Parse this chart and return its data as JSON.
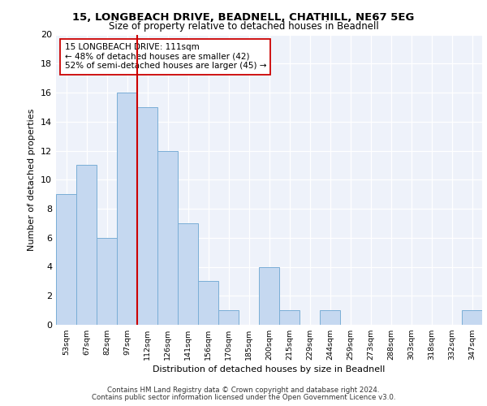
{
  "title1": "15, LONGBEACH DRIVE, BEADNELL, CHATHILL, NE67 5EG",
  "title2": "Size of property relative to detached houses in Beadnell",
  "xlabel": "Distribution of detached houses by size in Beadnell",
  "ylabel": "Number of detached properties",
  "bin_labels": [
    "53sqm",
    "67sqm",
    "82sqm",
    "97sqm",
    "112sqm",
    "126sqm",
    "141sqm",
    "156sqm",
    "170sqm",
    "185sqm",
    "200sqm",
    "215sqm",
    "229sqm",
    "244sqm",
    "259sqm",
    "273sqm",
    "288sqm",
    "303sqm",
    "318sqm",
    "332sqm",
    "347sqm"
  ],
  "bin_values": [
    9,
    11,
    6,
    16,
    15,
    12,
    7,
    3,
    1,
    0,
    4,
    1,
    0,
    1,
    0,
    0,
    0,
    0,
    0,
    0,
    1
  ],
  "bar_color": "#c5d8f0",
  "bar_edge_color": "#7aaed6",
  "vline_color": "#cc0000",
  "vline_index": 3.5,
  "annotation_text": "15 LONGBEACH DRIVE: 111sqm\n← 48% of detached houses are smaller (42)\n52% of semi-detached houses are larger (45) →",
  "annotation_box_color": "#ffffff",
  "annotation_box_edge": "#cc0000",
  "ylim": [
    0,
    20
  ],
  "yticks": [
    0,
    2,
    4,
    6,
    8,
    10,
    12,
    14,
    16,
    18,
    20
  ],
  "footer1": "Contains HM Land Registry data © Crown copyright and database right 2024.",
  "footer2": "Contains public sector information licensed under the Open Government Licence v3.0.",
  "bg_color": "#eef2fa"
}
